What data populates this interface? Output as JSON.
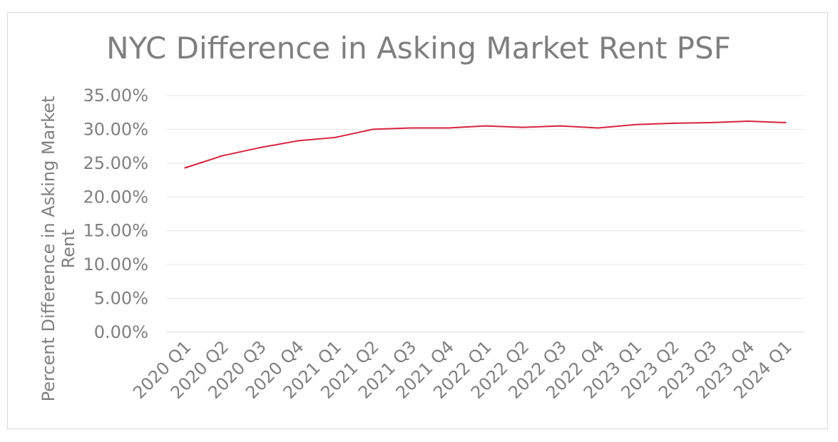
{
  "chart_data": {
    "type": "line",
    "title": "NYC Difference in Asking Market Rent PSF",
    "xlabel": "",
    "ylabel_lines": [
      "Percent Difference in Asking Market",
      "Rent"
    ],
    "categories": [
      "2020 Q1",
      "2020 Q2",
      "2020 Q3",
      "2020 Q4",
      "2021 Q1",
      "2021 Q2",
      "2021 Q3",
      "2021 Q4",
      "2022 Q1",
      "2022 Q2",
      "2022 Q3",
      "2022 Q4",
      "2023 Q1",
      "2023 Q2",
      "2023 Q3",
      "2023 Q4",
      "2024 Q1"
    ],
    "series": [
      {
        "color": "#d6233e",
        "values": [
          24.3,
          26.1,
          27.3,
          28.3,
          28.8,
          30.0,
          30.2,
          30.2,
          30.5,
          30.3,
          30.5,
          30.2,
          30.7,
          30.9,
          31.0,
          31.2,
          31.0
        ]
      }
    ],
    "yticks": [
      "0.00%",
      "5.00%",
      "10.00%",
      "15.00%",
      "20.00%",
      "25.00%",
      "30.00%",
      "35.00%"
    ],
    "ylim": [
      0,
      35
    ],
    "grid": true,
    "legend": "none"
  }
}
